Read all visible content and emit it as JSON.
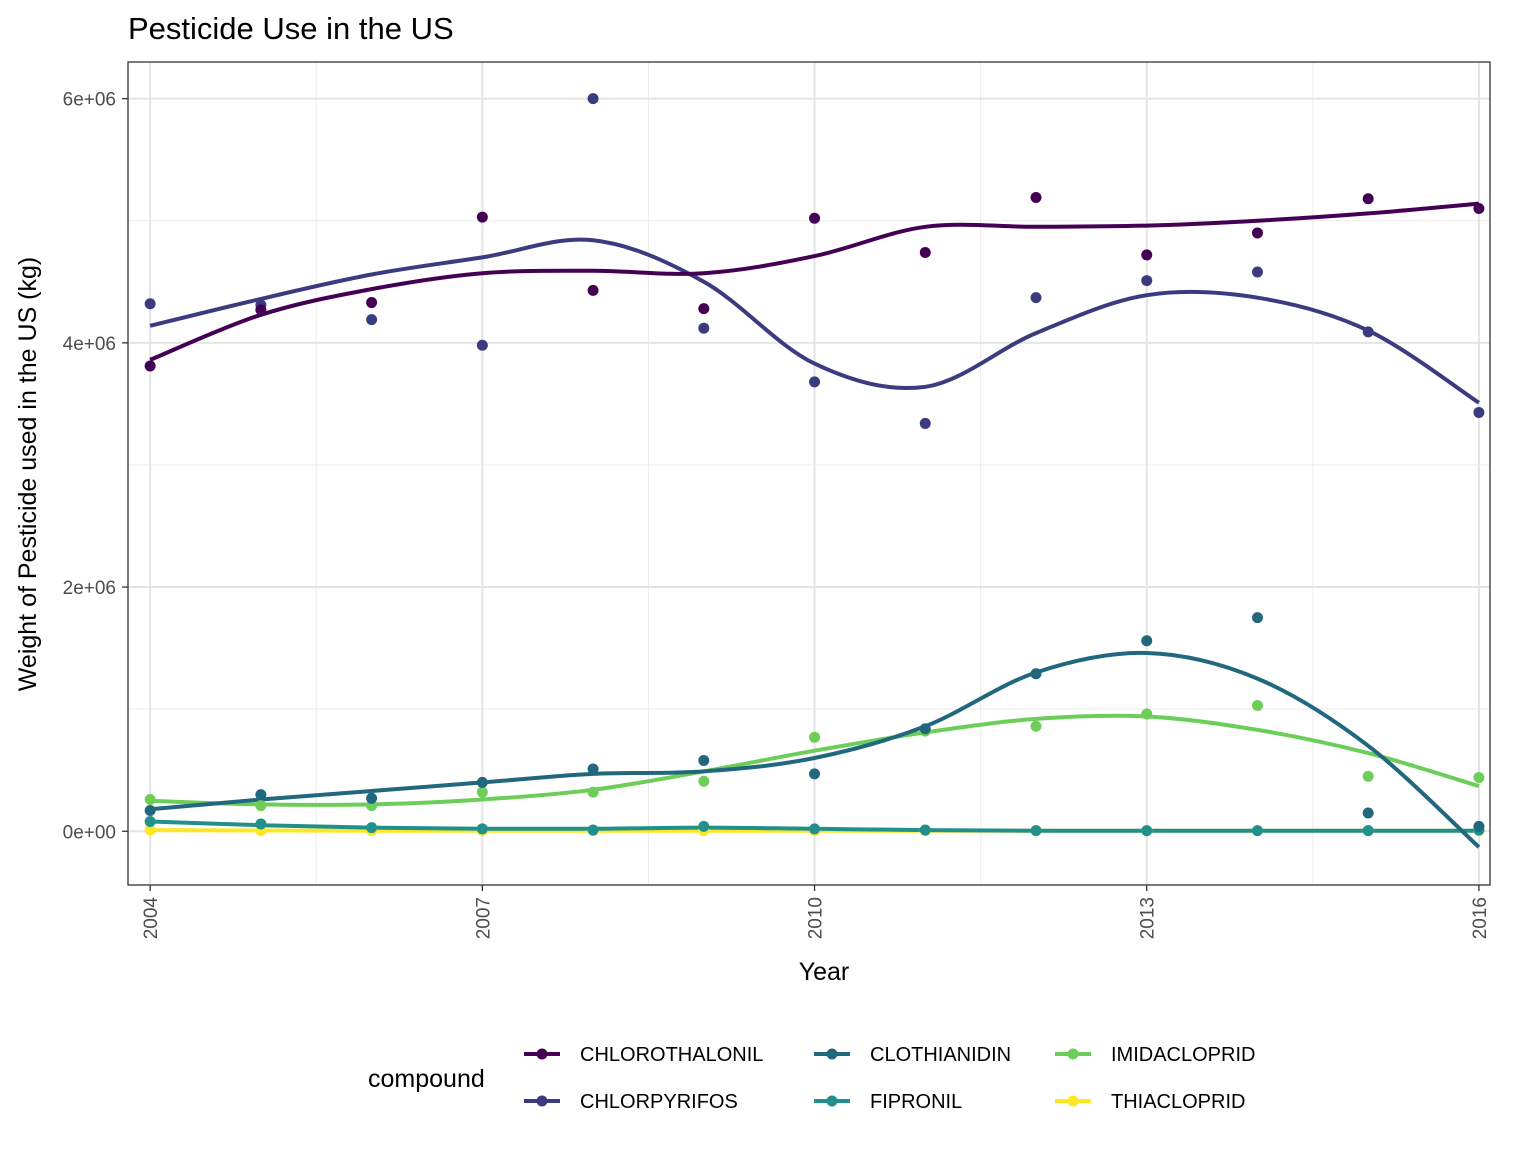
{
  "colors": {
    "CHLOROTHALONIL": "#440154",
    "CHLORPYRIFOS": "#3b3b80",
    "CLOTHIANIDIN": "#21677e",
    "FIPRONIL": "#21908c",
    "IMIDACLOPRID": "#6cce59",
    "THIACLOPRID": "#fde725"
  },
  "chart_data": {
    "type": "scatter",
    "title": "Pesticide Use in the US",
    "xlabel": "Year",
    "ylabel": "Weight of Pesticide used in the US (kg)",
    "xlim": [
      2003.8,
      2016.1
    ],
    "ylim": [
      -440000,
      6300000
    ],
    "x_ticks": [
      2004,
      2007,
      2010,
      2013,
      2016
    ],
    "x_tick_labels": [
      "2004",
      "2007",
      "2010",
      "2013",
      "2016"
    ],
    "y_ticks": [
      0,
      2000000,
      4000000,
      6000000
    ],
    "y_tick_labels": [
      "0e+00",
      "2e+06",
      "4e+06",
      "6e+06"
    ],
    "grid": true,
    "smoothing": "loess",
    "legend": {
      "title": "compound",
      "position": "bottom"
    },
    "x": [
      2004,
      2005,
      2006,
      2007,
      2008,
      2009,
      2010,
      2011,
      2012,
      2013,
      2014,
      2015,
      2016
    ],
    "series": [
      {
        "name": "CHLOROTHALONIL",
        "points": [
          3810000,
          4270000,
          4330000,
          5030000,
          4430000,
          4280000,
          5020000,
          4740000,
          5190000,
          4720000,
          4900000,
          5180000,
          5100000
        ],
        "trend": [
          3860000,
          4230000,
          4440000,
          4570000,
          4590000,
          4570000,
          4710000,
          4950000,
          4950000,
          4960000,
          5000000,
          5060000,
          5140000
        ]
      },
      {
        "name": "CHLORPYRIFOS",
        "points": [
          4320000,
          4310000,
          4190000,
          3980000,
          6000000,
          4120000,
          3680000,
          3340000,
          4370000,
          4510000,
          4580000,
          4090000,
          3430000
        ],
        "trend": [
          4140000,
          4360000,
          4560000,
          4700000,
          4840000,
          4500000,
          3830000,
          3640000,
          4080000,
          4390000,
          4370000,
          4100000,
          3510000
        ]
      },
      {
        "name": "CLOTHIANIDIN",
        "points": [
          170000,
          300000,
          270000,
          400000,
          510000,
          580000,
          470000,
          840000,
          1290000,
          1560000,
          1750000,
          150000,
          40000
        ],
        "trend": [
          180000,
          260000,
          330000,
          400000,
          470000,
          490000,
          600000,
          860000,
          1300000,
          1460000,
          1250000,
          700000,
          -130000
        ]
      },
      {
        "name": "FIPRONIL",
        "points": [
          80000,
          60000,
          30000,
          20000,
          10000,
          40000,
          20000,
          10000,
          5000,
          5000,
          5000,
          5000,
          10000
        ],
        "trend": [
          80000,
          50000,
          30000,
          20000,
          20000,
          30000,
          20000,
          10000,
          5000,
          5000,
          5000,
          5000,
          5000
        ]
      },
      {
        "name": "IMIDACLOPRID",
        "points": [
          260000,
          210000,
          210000,
          320000,
          320000,
          410000,
          770000,
          820000,
          860000,
          960000,
          1030000,
          450000,
          440000
        ],
        "trend": [
          250000,
          220000,
          220000,
          260000,
          340000,
          490000,
          660000,
          810000,
          920000,
          940000,
          830000,
          640000,
          370000
        ]
      },
      {
        "name": "THIACLOPRID",
        "points": [
          10000,
          5000,
          5000,
          5000,
          5000,
          5000,
          5000,
          5000,
          5000,
          5000,
          5000,
          5000,
          5000
        ],
        "trend": [
          10000,
          6000,
          5000,
          5000,
          5000,
          5000,
          5000,
          5000,
          5000,
          5000,
          5000,
          5000,
          5000
        ]
      }
    ]
  }
}
